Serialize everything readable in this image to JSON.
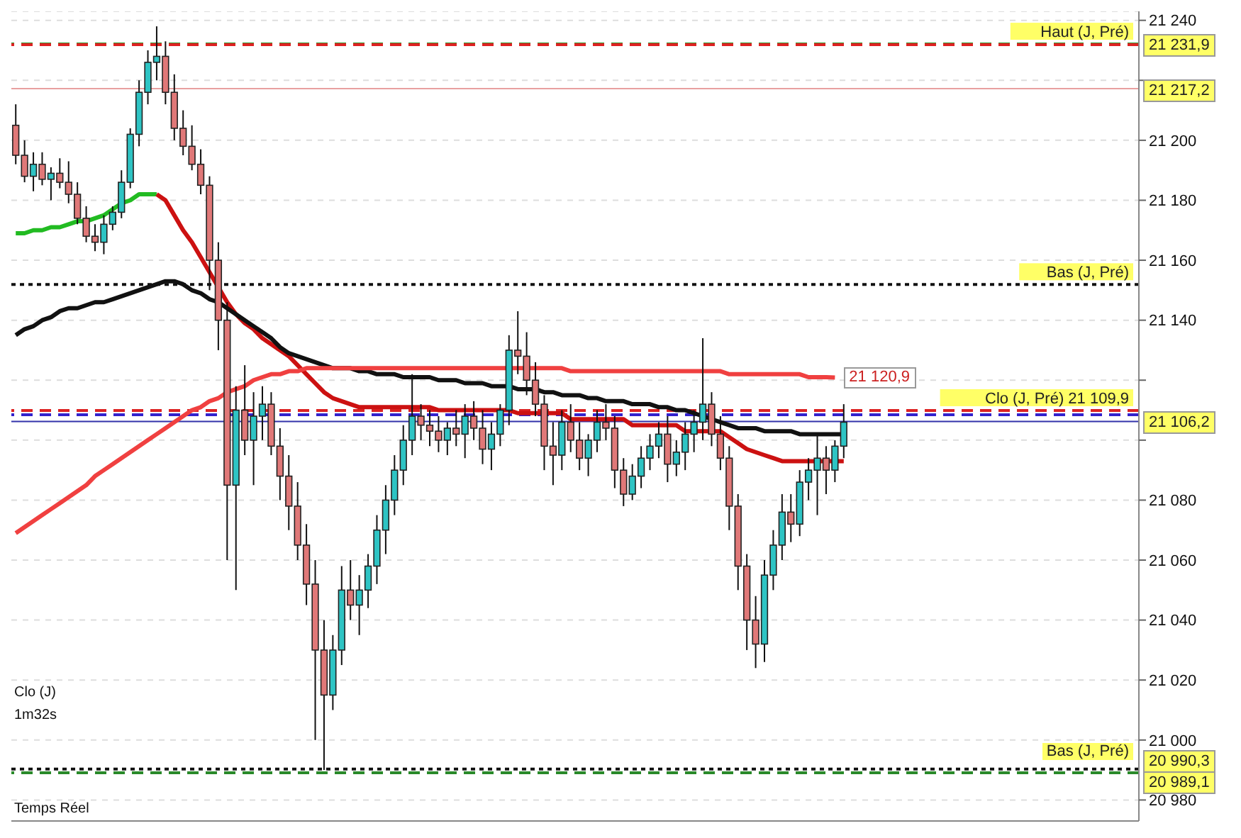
{
  "chart_data": {
    "type": "candlestick",
    "categories": [
      null,
      null,
      null,
      null,
      null,
      null,
      null,
      null,
      null,
      null,
      null,
      null,
      null,
      null,
      null,
      null,
      null,
      null,
      null,
      null,
      null,
      null,
      null,
      null,
      null,
      null,
      null,
      null,
      null,
      null,
      null,
      null,
      null,
      null,
      null,
      null,
      null,
      null,
      null,
      null,
      null,
      null,
      null,
      null,
      null,
      null,
      null,
      null,
      null,
      null,
      null,
      null,
      null,
      null,
      null,
      null,
      null,
      null,
      null,
      null,
      null,
      null,
      null,
      null,
      null,
      null,
      null,
      null,
      null,
      null,
      null,
      null,
      null,
      null,
      null,
      null,
      null,
      null,
      null,
      null,
      null,
      null,
      null,
      null,
      null,
      null,
      null,
      null,
      null,
      null,
      null,
      null,
      null,
      null,
      null
    ],
    "ohlc": [
      [
        21205,
        21212,
        21192,
        21195
      ],
      [
        21195,
        21200,
        21186,
        21188
      ],
      [
        21188,
        21196,
        21183,
        21192
      ],
      [
        21192,
        21196,
        21185,
        21187
      ],
      [
        21187,
        21191,
        21180,
        21189
      ],
      [
        21189,
        21194,
        21184,
        21186
      ],
      [
        21186,
        21193,
        21179,
        21182
      ],
      [
        21182,
        21186,
        21172,
        21174
      ],
      [
        21174,
        21178,
        21166,
        21168
      ],
      [
        21168,
        21172,
        21163,
        21166
      ],
      [
        21166,
        21175,
        21162,
        21172
      ],
      [
        21172,
        21178,
        21170,
        21176
      ],
      [
        21176,
        21190,
        21174,
        21186
      ],
      [
        21186,
        21204,
        21184,
        21202
      ],
      [
        21202,
        21220,
        21198,
        21216
      ],
      [
        21216,
        21230,
        21212,
        21226
      ],
      [
        21226,
        21238,
        21220,
        21228
      ],
      [
        21228,
        21233,
        21212,
        21216
      ],
      [
        21216,
        21222,
        21200,
        21204
      ],
      [
        21204,
        21210,
        21195,
        21198
      ],
      [
        21198,
        21205,
        21190,
        21192
      ],
      [
        21192,
        21197,
        21182,
        21185
      ],
      [
        21185,
        21188,
        21150,
        21160
      ],
      [
        21160,
        21166,
        21130,
        21140
      ],
      [
        21140,
        21146,
        21060,
        21085
      ],
      [
        21085,
        21118,
        21050,
        21110
      ],
      [
        21110,
        21125,
        21095,
        21100
      ],
      [
        21100,
        21116,
        21085,
        21108
      ],
      [
        21108,
        21118,
        21100,
        21112
      ],
      [
        21112,
        21116,
        21095,
        21098
      ],
      [
        21098,
        21104,
        21080,
        21088
      ],
      [
        21088,
        21095,
        21070,
        21078
      ],
      [
        21078,
        21086,
        21060,
        21065
      ],
      [
        21065,
        21072,
        21045,
        21052
      ],
      [
        21052,
        21060,
        21000,
        21030
      ],
      [
        21030,
        21040,
        20990,
        21015
      ],
      [
        21015,
        21035,
        21010,
        21030
      ],
      [
        21030,
        21058,
        21025,
        21050
      ],
      [
        21050,
        21060,
        21040,
        21045
      ],
      [
        21045,
        21055,
        21035,
        21050
      ],
      [
        21050,
        21062,
        21044,
        21058
      ],
      [
        21058,
        21075,
        21052,
        21070
      ],
      [
        21070,
        21085,
        21062,
        21080
      ],
      [
        21080,
        21095,
        21075,
        21090
      ],
      [
        21090,
        21105,
        21085,
        21100
      ],
      [
        21100,
        21122,
        21095,
        21108
      ],
      [
        21108,
        21112,
        21100,
        21105
      ],
      [
        21105,
        21110,
        21098,
        21103
      ],
      [
        21103,
        21108,
        21096,
        21100
      ],
      [
        21100,
        21106,
        21095,
        21104
      ],
      [
        21104,
        21110,
        21098,
        21102
      ],
      [
        21102,
        21112,
        21094,
        21108
      ],
      [
        21108,
        21113,
        21100,
        21104
      ],
      [
        21104,
        21110,
        21092,
        21097
      ],
      [
        21097,
        21106,
        21090,
        21102
      ],
      [
        21102,
        21112,
        21098,
        21110
      ],
      [
        21110,
        21135,
        21105,
        21130
      ],
      [
        21130,
        21143,
        21122,
        21128
      ],
      [
        21128,
        21136,
        21115,
        21120
      ],
      [
        21120,
        21126,
        21108,
        21112
      ],
      [
        21112,
        21115,
        21090,
        21098
      ],
      [
        21098,
        21106,
        21085,
        21095
      ],
      [
        21095,
        21110,
        21090,
        21106
      ],
      [
        21106,
        21112,
        21096,
        21100
      ],
      [
        21100,
        21106,
        21090,
        21094
      ],
      [
        21094,
        21102,
        21088,
        21100
      ],
      [
        21100,
        21110,
        21096,
        21106
      ],
      [
        21106,
        21112,
        21100,
        21104
      ],
      [
        21104,
        21108,
        21084,
        21090
      ],
      [
        21090,
        21094,
        21078,
        21082
      ],
      [
        21082,
        21092,
        21080,
        21088
      ],
      [
        21088,
        21098,
        21084,
        21094
      ],
      [
        21094,
        21102,
        21090,
        21098
      ],
      [
        21098,
        21106,
        21094,
        21102
      ],
      [
        21102,
        21108,
        21086,
        21092
      ],
      [
        21092,
        21100,
        21088,
        21096
      ],
      [
        21096,
        21106,
        21090,
        21102
      ],
      [
        21102,
        21110,
        21096,
        21106
      ],
      [
        21106,
        21134,
        21100,
        21112
      ],
      [
        21112,
        21116,
        21098,
        21102
      ],
      [
        21102,
        21108,
        21090,
        21094
      ],
      [
        21094,
        21098,
        21070,
        21078
      ],
      [
        21078,
        21082,
        21050,
        21058
      ],
      [
        21058,
        21062,
        21030,
        21040
      ],
      [
        21040,
        21048,
        21024,
        21032
      ],
      [
        21032,
        21060,
        21026,
        21055
      ],
      [
        21055,
        21070,
        21050,
        21065
      ],
      [
        21065,
        21082,
        21060,
        21076
      ],
      [
        21076,
        21082,
        21066,
        21072
      ],
      [
        21072,
        21090,
        21068,
        21086
      ],
      [
        21086,
        21094,
        21080,
        21090
      ],
      [
        21090,
        21102,
        21075,
        21094
      ],
      [
        21094,
        21098,
        21082,
        21090
      ],
      [
        21090,
        21100,
        21086,
        21098
      ],
      [
        21098,
        21112,
        21094,
        21106
      ]
    ],
    "colors": [
      "#e07878",
      "#e07878",
      "#2ec4c4",
      "#e07878",
      "#2ec4c4",
      "#e07878",
      "#e07878",
      "#e07878",
      "#e07878",
      "#e07878",
      "#2ec4c4",
      "#2ec4c4",
      "#2ec4c4",
      "#2ec4c4",
      "#2ec4c4",
      "#2ec4c4",
      "#2ec4c4",
      "#e07878",
      "#e07878",
      "#e07878",
      "#e07878",
      "#e07878",
      "#e07878",
      "#e07878",
      "#e07878",
      "#2ec4c4",
      "#e07878",
      "#2ec4c4",
      "#2ec4c4",
      "#e07878",
      "#e07878",
      "#e07878",
      "#e07878",
      "#e07878",
      "#e07878",
      "#e07878",
      "#2ec4c4",
      "#2ec4c4",
      "#e07878",
      "#2ec4c4",
      "#2ec4c4",
      "#2ec4c4",
      "#2ec4c4",
      "#2ec4c4",
      "#2ec4c4",
      "#2ec4c4",
      "#e07878",
      "#e07878",
      "#e07878",
      "#2ec4c4",
      "#e07878",
      "#2ec4c4",
      "#e07878",
      "#e07878",
      "#2ec4c4",
      "#2ec4c4",
      "#2ec4c4",
      "#e07878",
      "#e07878",
      "#e07878",
      "#e07878",
      "#e07878",
      "#2ec4c4",
      "#e07878",
      "#e07878",
      "#2ec4c4",
      "#2ec4c4",
      "#e07878",
      "#e07878",
      "#e07878",
      "#2ec4c4",
      "#2ec4c4",
      "#2ec4c4",
      "#2ec4c4",
      "#e07878",
      "#2ec4c4",
      "#2ec4c4",
      "#2ec4c4",
      "#2ec4c4",
      "#e07878",
      "#e07878",
      "#e07878",
      "#e07878",
      "#e07878",
      "#e07878",
      "#2ec4c4",
      "#2ec4c4",
      "#2ec4c4",
      "#e07878",
      "#2ec4c4",
      "#2ec4c4",
      "#2ec4c4",
      "#e07878",
      "#2ec4c4",
      "#2ec4c4"
    ],
    "series": [
      {
        "type": "line",
        "color": "#22bb22",
        "values": [
          21169,
          21169,
          21170,
          21170,
          21171,
          21171,
          21172,
          21173,
          21173,
          21174,
          21175,
          21177,
          21179,
          21180,
          21182,
          21182,
          21182,
          null,
          null,
          null,
          null,
          null,
          null,
          null,
          null,
          null,
          null,
          null,
          null,
          null,
          null,
          null,
          null,
          null,
          null,
          null,
          null,
          null,
          null,
          null,
          null,
          null,
          null,
          null,
          null,
          null,
          null,
          null,
          null,
          null,
          null,
          null,
          null,
          null,
          null,
          null,
          null,
          null,
          null,
          null,
          null,
          null,
          null,
          null,
          null,
          null,
          null,
          null,
          null,
          null,
          null,
          null,
          null,
          null,
          null,
          null,
          null,
          null,
          null,
          null,
          null,
          null,
          null,
          null,
          null,
          null,
          null,
          null,
          null,
          null,
          null,
          null,
          null,
          null,
          null
        ]
      },
      {
        "type": "line",
        "color": "#cc1111",
        "values": [
          null,
          null,
          null,
          null,
          null,
          null,
          null,
          null,
          null,
          null,
          null,
          null,
          null,
          null,
          null,
          null,
          21182,
          21180,
          21175,
          21170,
          21166,
          21161,
          21156,
          21151,
          21146,
          21142,
          21139,
          21137,
          21134,
          21132,
          21130,
          21128,
          21125,
          21122,
          21119,
          21116,
          21114,
          21113,
          21112,
          21111,
          21111,
          21111,
          21111,
          21111,
          21111,
          21111,
          21111,
          21111,
          21110,
          21110,
          21110,
          21110,
          21110,
          21110,
          21110,
          21110,
          21110,
          21109,
          21109,
          21109,
          21109,
          21109,
          21109,
          21107,
          21107,
          21107,
          21107,
          21107,
          21107,
          21107,
          21105,
          21105,
          21105,
          21105,
          21105,
          21105,
          21103,
          21103,
          21103,
          21103,
          21103,
          21101,
          21099,
          21097,
          21096,
          21095,
          21094,
          21093,
          21093,
          21093,
          21093,
          21093,
          21093,
          21093,
          21093
        ]
      },
      {
        "type": "line",
        "color": "#111111",
        "values": [
          21135,
          21137,
          21138,
          21140,
          21141,
          21143,
          21144,
          21144,
          21145,
          21146,
          21146,
          21147,
          21148,
          21149,
          21150,
          21151,
          21152,
          21153,
          21153,
          21152,
          21150,
          21149,
          21147,
          21146,
          21144,
          21142,
          21140,
          21138,
          21136,
          21134,
          21131,
          21129,
          21128,
          21127,
          21126,
          21125,
          21124,
          21124,
          21124,
          21123,
          21123,
          21122,
          21122,
          21122,
          21121,
          21121,
          21121,
          21121,
          21120,
          21120,
          21120,
          21119,
          21119,
          21119,
          21118,
          21118,
          21118,
          21117,
          21117,
          21117,
          21116,
          21116,
          21115,
          21115,
          21115,
          21114,
          21114,
          21113,
          21113,
          21113,
          21112,
          21112,
          21112,
          21111,
          21111,
          21110,
          21110,
          21109,
          21108,
          21107,
          21106,
          21105,
          21104,
          21104,
          21104,
          21103,
          21103,
          21103,
          21103,
          21102,
          21102,
          21102,
          21102,
          21102,
          21102
        ]
      },
      {
        "type": "line",
        "color": "#f04040",
        "values": [
          21069,
          21071,
          21073,
          21075,
          21077,
          21079,
          21081,
          21083,
          21085,
          21088,
          21090,
          21092,
          21094,
          21096,
          21098,
          21100,
          21102,
          21104,
          21106,
          21108,
          21110,
          21111,
          21113,
          21114,
          21116,
          21117,
          21118,
          21120,
          21121,
          21122,
          21122,
          21123,
          21123,
          21124,
          21124,
          21124,
          21124,
          21124,
          21124,
          21124,
          21124,
          21124,
          21124,
          21124,
          21124,
          21124,
          21124,
          21124,
          21124,
          21124,
          21124,
          21124,
          21124,
          21124,
          21124,
          21124,
          21124,
          21124,
          21124,
          21124,
          21124,
          21124,
          21124,
          21123,
          21123,
          21123,
          21123,
          21123,
          21123,
          21123,
          21123,
          21123,
          21123,
          21123,
          21123,
          21123,
          21123,
          21123,
          21123,
          21123,
          21123,
          21122,
          21122,
          21122,
          21122,
          21122,
          21122,
          21122,
          21122,
          21122,
          21121,
          21121,
          21121,
          21120.9,
          null
        ],
        "value_labels": [
          null,
          null,
          null,
          null,
          null,
          null,
          null,
          null,
          null,
          null,
          null,
          null,
          null,
          null,
          null,
          null,
          null,
          null,
          null,
          null,
          null,
          null,
          null,
          null,
          null,
          null,
          null,
          null,
          null,
          null,
          null,
          null,
          null,
          null,
          null,
          null,
          null,
          null,
          null,
          null,
          null,
          null,
          null,
          null,
          null,
          null,
          null,
          null,
          null,
          null,
          null,
          null,
          null,
          null,
          null,
          null,
          null,
          null,
          null,
          null,
          null,
          null,
          null,
          null,
          null,
          null,
          null,
          null,
          null,
          null,
          null,
          null,
          null,
          null,
          null,
          null,
          null,
          null,
          null,
          null,
          null,
          null,
          null,
          null,
          null,
          null,
          null,
          null,
          null,
          null,
          null,
          null,
          null,
          "21 120,9",
          null
        ]
      }
    ],
    "ylim": [
      20973,
      21243
    ],
    "yticks": [
      {
        "value": 20980,
        "label": "20 980"
      },
      {
        "value": 21000,
        "label": "21 000"
      },
      {
        "value": 21020,
        "label": "21 020"
      },
      {
        "value": 21040,
        "label": "21 040"
      },
      {
        "value": 21060,
        "label": "21 060"
      },
      {
        "value": 21080,
        "label": "21 080"
      },
      {
        "value": 21100,
        "label": null
      },
      {
        "value": 21120,
        "label": null
      },
      {
        "value": 21140,
        "label": "21 140"
      },
      {
        "value": 21160,
        "label": "21 160"
      },
      {
        "value": 21180,
        "label": "21 180"
      },
      {
        "value": 21200,
        "label": "21 200"
      },
      {
        "value": 21220,
        "label": null
      },
      {
        "value": 21240,
        "label": "21 240"
      }
    ],
    "tick_labels": "y",
    "grid": "y",
    "ref_lines": [
      {
        "axis": "y",
        "value": 21232.1,
        "label": "Haut (J, Pré)",
        "color": "#339933",
        "line_style": "dashed"
      },
      {
        "axis": "y",
        "value": 21231.9,
        "label": "21 231,9",
        "color": "#dd2222",
        "line_style": "dashed"
      },
      {
        "axis": "y",
        "value": 21217.2,
        "label": "21 217,2",
        "color": "#e8a0a0",
        "line_style": "solid"
      },
      {
        "axis": "y",
        "value": 21151.9,
        "label": "Bas (J, Pré)",
        "color": "#111111",
        "line_style": "dotted"
      },
      {
        "axis": "y",
        "value": 21109.9,
        "label": "Clo (J, Pré) 21 109,9",
        "color": "#dd2222",
        "line_style": "dashed"
      },
      {
        "axis": "y",
        "value": 21108.5,
        "color": "#3322cc",
        "line_style": "dashed"
      },
      {
        "axis": "y",
        "value": 21106.2,
        "label": "21 106,2",
        "color": "#3333aa",
        "line_style": "solid"
      },
      {
        "axis": "y",
        "value": 20990.3,
        "label": "20 990,3",
        "color": "#111111",
        "line_style": "dotted"
      },
      {
        "axis": "y",
        "value": 20989.1,
        "label": "20 989,1",
        "color": "#2a8a2a",
        "line_style": "dashed"
      }
    ],
    "annotations": [
      {
        "text": "Bas (J, Pré)",
        "y": 20990.3
      },
      "Clo (J)",
      "1m32s",
      "Temps Réel"
    ]
  }
}
